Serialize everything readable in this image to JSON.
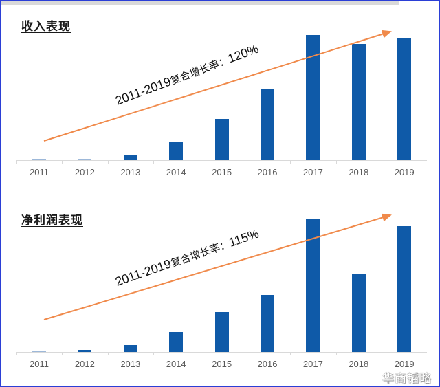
{
  "panels": [
    {
      "title": "收入表现",
      "annotation": {
        "range": "2011-2019",
        "label": "复合增长率：",
        "value": "120%"
      },
      "years": [
        "2011",
        "2012",
        "2013",
        "2014",
        "2015",
        "2016",
        "2017",
        "2018",
        "2019"
      ]
    },
    {
      "title": "净利润表现",
      "annotation": {
        "range": "2011-2019",
        "label": "复合增长率：",
        "value": "115%"
      },
      "years": [
        "2011",
        "2012",
        "2013",
        "2014",
        "2015",
        "2016",
        "2017",
        "2018",
        "2019"
      ]
    }
  ],
  "watermark": "华商韬略",
  "colors": {
    "bar": "#0f5aa8",
    "arrow": "#f08a4b",
    "frame": "#2b3fd6",
    "axis": "#d9d9d9"
  },
  "chart_data": [
    {
      "type": "bar",
      "title": "收入表现",
      "categories": [
        "2011",
        "2012",
        "2013",
        "2014",
        "2015",
        "2016",
        "2017",
        "2018",
        "2019"
      ],
      "values": [
        0,
        0.5,
        4,
        15,
        33,
        57,
        100,
        93,
        97
      ],
      "value_note": "relative heights (2017 = 100); no y-axis shown",
      "annotations": [
        "2011-2019复合增长率：120%"
      ],
      "trend_arrow": true,
      "xlabel": "",
      "ylabel": "",
      "grid": false,
      "legend": null
    },
    {
      "type": "bar",
      "title": "净利润表现",
      "categories": [
        "2011",
        "2012",
        "2013",
        "2014",
        "2015",
        "2016",
        "2017",
        "2018",
        "2019"
      ],
      "values": [
        0.5,
        1.5,
        5,
        15,
        30,
        43,
        100,
        59,
        95
      ],
      "value_note": "relative heights (2017 = 100); no y-axis shown",
      "annotations": [
        "2011-2019复合增长率：115%"
      ],
      "trend_arrow": true,
      "xlabel": "",
      "ylabel": "",
      "grid": false,
      "legend": null
    }
  ]
}
